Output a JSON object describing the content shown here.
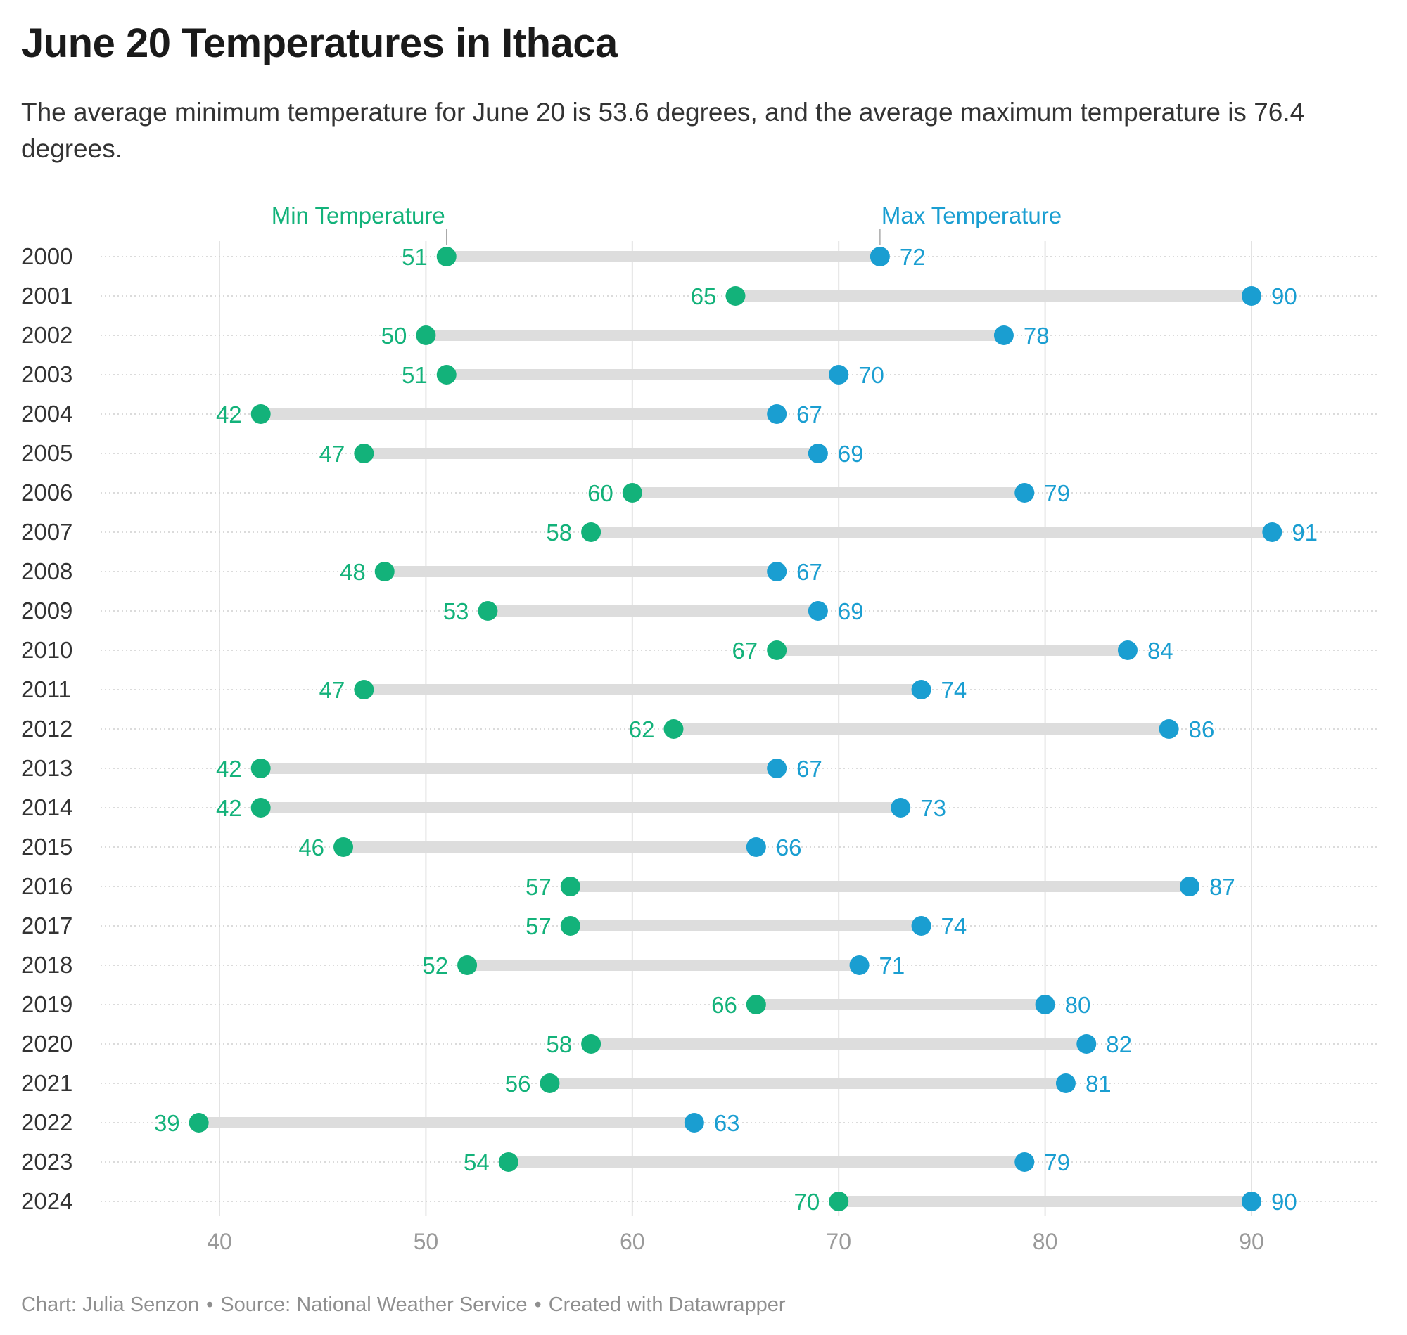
{
  "chart_data": {
    "type": "dumbbell",
    "title": "June 20 Temperatures in Ithaca",
    "subtitle": "The average minimum temperature for June 20 is 53.6 degrees, and the average maximum temperature is 76.4 degrees.",
    "xlim": [
      35,
      95
    ],
    "x_ticks": [
      40,
      50,
      60,
      70,
      80,
      90
    ],
    "grid": true,
    "categories": [
      "2000",
      "2001",
      "2002",
      "2003",
      "2004",
      "2005",
      "2006",
      "2007",
      "2008",
      "2009",
      "2010",
      "2011",
      "2012",
      "2013",
      "2014",
      "2015",
      "2016",
      "2017",
      "2018",
      "2019",
      "2020",
      "2021",
      "2022",
      "2023",
      "2024"
    ],
    "series": [
      {
        "name": "Min Temperature",
        "color": "#13b27a",
        "values": [
          51,
          65,
          50,
          51,
          42,
          47,
          60,
          58,
          48,
          53,
          67,
          47,
          62,
          42,
          42,
          46,
          57,
          57,
          52,
          66,
          58,
          56,
          39,
          54,
          70
        ]
      },
      {
        "name": "Max Temperature",
        "color": "#1a9ed1",
        "values": [
          72,
          90,
          78,
          70,
          67,
          69,
          79,
          91,
          67,
          69,
          84,
          74,
          86,
          67,
          73,
          66,
          87,
          74,
          71,
          80,
          82,
          81,
          63,
          79,
          90
        ]
      }
    ],
    "bar_color": "#dddddd"
  },
  "footer": {
    "chart_credit": "Chart: Julia Senzon",
    "source": "Source: National Weather Service",
    "tool": "Created with Datawrapper",
    "separator": "•"
  }
}
